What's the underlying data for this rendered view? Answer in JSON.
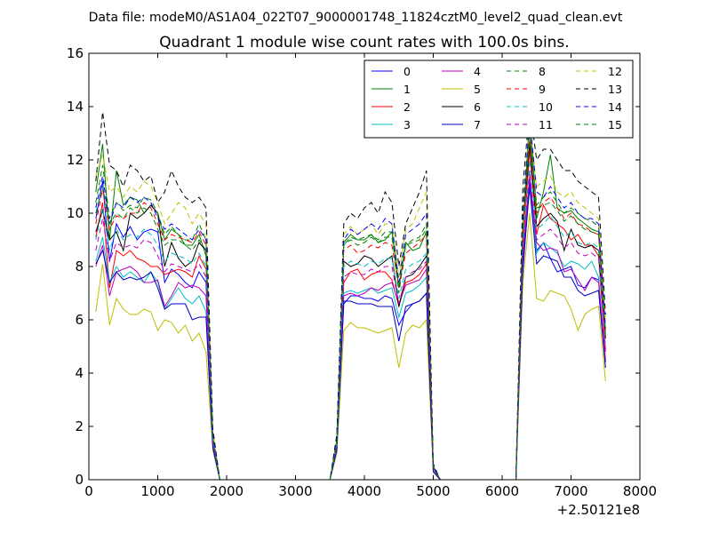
{
  "suptitle": "Data file: modeM0/AS1A04_022T07_9000001748_11824cztM0_level2_quad_clean.evt",
  "chart_data": {
    "type": "line",
    "title": "Quadrant 1 module wise count rates with 100.0s bins.",
    "xlabel": "",
    "ylabel": "",
    "x_offset_label": "+2.50121e8",
    "xlim": [
      0,
      8000
    ],
    "ylim": [
      0,
      16
    ],
    "x_ticks": [
      0,
      1000,
      2000,
      3000,
      4000,
      5000,
      6000,
      7000,
      8000
    ],
    "y_ticks": [
      0,
      2,
      4,
      6,
      8,
      10,
      12,
      14,
      16
    ],
    "grid": false,
    "legend_position": "top-right",
    "legend_columns": 4,
    "x": [
      100,
      200,
      300,
      400,
      500,
      600,
      700,
      800,
      900,
      1000,
      1100,
      1200,
      1300,
      1400,
      1500,
      1600,
      1700,
      1800,
      1900,
      2000,
      2500,
      3000,
      3500,
      3600,
      3700,
      3800,
      3900,
      4000,
      4100,
      4200,
      4300,
      4400,
      4500,
      4600,
      4700,
      4800,
      4900,
      5000,
      5100,
      5200,
      5500,
      6000,
      6200,
      6300,
      6400,
      6500,
      6600,
      6700,
      6800,
      6900,
      7000,
      7100,
      7200,
      7300,
      7400,
      7500
    ],
    "series": [
      {
        "name": "0",
        "color": "#0000ff",
        "dash": "solid",
        "values": [
          9.8,
          11.2,
          8.2,
          9.6,
          9.1,
          9.5,
          9.0,
          9.3,
          9.4,
          9.3,
          7.4,
          7.9,
          7.7,
          7.4,
          7.2,
          7.8,
          7.4,
          1.4,
          0,
          0,
          0,
          0,
          0,
          1.2,
          6.6,
          6.9,
          6.9,
          6.8,
          6.8,
          6.7,
          6.9,
          6.8,
          5.8,
          6.3,
          6.6,
          6.7,
          7.0,
          0.4,
          0,
          0,
          0,
          0,
          0,
          7.8,
          11.2,
          8.6,
          8.9,
          8.3,
          7.8,
          7.9,
          8.0,
          7.3,
          7.2,
          7.6,
          7.5,
          4.4
        ]
      },
      {
        "name": "1",
        "color": "#008000",
        "dash": "solid",
        "values": [
          10.8,
          12.6,
          9.0,
          11.6,
          10.3,
          10.6,
          10.5,
          10.0,
          10.3,
          10.0,
          9.0,
          9.4,
          9.2,
          8.8,
          8.8,
          9.2,
          8.4,
          1.6,
          0,
          0,
          0,
          0,
          0,
          1.4,
          8.9,
          9.2,
          9.0,
          9.0,
          9.2,
          8.9,
          9.0,
          9.3,
          7.2,
          8.9,
          8.6,
          8.7,
          9.3,
          0.5,
          0,
          0,
          0,
          0,
          0,
          9.2,
          13.8,
          9.8,
          10.8,
          12.2,
          10.2,
          10.0,
          10.1,
          9.8,
          9.6,
          9.4,
          9.3,
          5.5
        ]
      },
      {
        "name": "2",
        "color": "#ff0000",
        "dash": "solid",
        "values": [
          9.1,
          10.4,
          7.2,
          8.6,
          8.4,
          8.6,
          8.3,
          8.2,
          8.0,
          8.0,
          7.7,
          7.8,
          7.9,
          7.8,
          7.6,
          8.4,
          7.9,
          1.5,
          0,
          0,
          0,
          0,
          0,
          1.3,
          7.4,
          7.8,
          7.9,
          7.5,
          7.7,
          7.8,
          7.8,
          7.5,
          6.5,
          7.4,
          7.5,
          7.7,
          8.1,
          0.4,
          0,
          0,
          0,
          0,
          0,
          8.6,
          12.4,
          9.2,
          10.3,
          9.8,
          9.6,
          9.4,
          9.0,
          9.2,
          8.8,
          8.8,
          8.4,
          4.9
        ]
      },
      {
        "name": "3",
        "color": "#00bfbf",
        "dash": "solid",
        "values": [
          8.2,
          9.1,
          7.4,
          8.0,
          7.6,
          7.8,
          7.6,
          7.4,
          7.8,
          7.4,
          6.4,
          6.8,
          7.2,
          6.8,
          6.6,
          6.9,
          6.3,
          1.3,
          0,
          0,
          0,
          0,
          0,
          1.2,
          7.0,
          7.1,
          7.0,
          7.1,
          7.2,
          7.0,
          7.1,
          7.2,
          6.1,
          7.0,
          7.1,
          7.3,
          7.6,
          0.4,
          0,
          0,
          0,
          0,
          0,
          8.2,
          11.0,
          8.5,
          8.9,
          8.7,
          8.5,
          8.0,
          8.2,
          8.1,
          7.9,
          8.2,
          7.6,
          4.2
        ]
      },
      {
        "name": "4",
        "color": "#bf00bf",
        "dash": "solid",
        "values": [
          8.0,
          8.8,
          6.9,
          7.8,
          7.9,
          8.0,
          7.8,
          7.4,
          7.4,
          7.5,
          6.5,
          6.9,
          7.4,
          7.2,
          7.3,
          7.2,
          6.9,
          1.3,
          0,
          0,
          0,
          0,
          0,
          1.2,
          6.9,
          7.0,
          6.9,
          7.0,
          7.2,
          7.1,
          7.3,
          7.4,
          6.6,
          7.3,
          7.4,
          7.5,
          7.9,
          0.4,
          0,
          0,
          0,
          0,
          0,
          8.4,
          11.4,
          8.9,
          8.6,
          8.7,
          8.6,
          7.8,
          7.9,
          7.5,
          7.1,
          7.6,
          7.4,
          4.5
        ]
      },
      {
        "name": "5",
        "color": "#bfbf00",
        "dash": "solid",
        "values": [
          6.3,
          8.1,
          5.8,
          6.8,
          6.4,
          6.2,
          6.2,
          6.4,
          6.3,
          5.6,
          6.0,
          5.9,
          5.5,
          5.8,
          5.2,
          5.5,
          4.8,
          1.1,
          0,
          0,
          0,
          0,
          0,
          1.0,
          5.6,
          5.9,
          5.7,
          5.7,
          5.6,
          5.5,
          5.6,
          5.7,
          4.2,
          5.5,
          5.8,
          5.7,
          6.0,
          0.3,
          0,
          0,
          0,
          0,
          0,
          7.4,
          10.0,
          6.8,
          6.7,
          7.1,
          7.0,
          6.9,
          6.4,
          5.6,
          6.2,
          6.4,
          6.5,
          3.7
        ]
      },
      {
        "name": "6",
        "color": "#000000",
        "dash": "solid",
        "values": [
          9.3,
          10.1,
          9.0,
          9.3,
          8.6,
          10.0,
          9.8,
          10.0,
          10.3,
          10.0,
          8.0,
          8.9,
          8.3,
          8.0,
          8.2,
          8.9,
          8.6,
          1.6,
          0,
          0,
          0,
          0,
          0,
          1.5,
          8.2,
          8.0,
          8.1,
          8.4,
          8.3,
          8.0,
          8.2,
          8.4,
          6.5,
          7.6,
          7.7,
          8.0,
          8.4,
          0.5,
          0,
          0,
          0,
          0,
          0,
          9.4,
          12.6,
          9.5,
          9.8,
          10.0,
          9.7,
          8.6,
          9.4,
          8.8,
          8.7,
          8.8,
          8.6,
          5.3
        ]
      },
      {
        "name": "7",
        "color": "#0000bf",
        "dash": "solid",
        "values": [
          8.1,
          8.6,
          7.4,
          7.8,
          7.5,
          7.6,
          7.5,
          7.6,
          7.8,
          7.2,
          6.4,
          6.6,
          6.6,
          6.6,
          6.0,
          6.1,
          6.1,
          1.2,
          0,
          0,
          0,
          0,
          0,
          1.1,
          6.7,
          6.7,
          6.6,
          6.6,
          6.6,
          6.5,
          6.5,
          6.5,
          5.2,
          6.5,
          6.6,
          6.7,
          7.0,
          0.3,
          0,
          0,
          0,
          0,
          0,
          8.0,
          11.0,
          8.1,
          8.4,
          8.3,
          8.2,
          7.6,
          7.6,
          7.1,
          6.9,
          7.0,
          7.1,
          4.2
        ]
      },
      {
        "name": "8",
        "color": "#008000",
        "dash": "dashed",
        "values": [
          10.4,
          11.8,
          9.8,
          10.4,
          10.1,
          10.3,
          10.2,
          10.6,
          10.5,
          10.0,
          9.2,
          9.5,
          9.2,
          9.0,
          9.0,
          9.6,
          9.0,
          1.7,
          0,
          0,
          0,
          0,
          0,
          1.5,
          8.8,
          9.1,
          9.0,
          9.1,
          9.2,
          9.0,
          9.3,
          9.3,
          7.0,
          8.8,
          8.9,
          9.0,
          9.4,
          0.5,
          0,
          0,
          0,
          0,
          0,
          9.6,
          13.2,
          10.3,
          10.6,
          10.8,
          10.4,
          10.0,
          10.2,
          10.0,
          9.8,
          9.7,
          9.5,
          5.6
        ]
      },
      {
        "name": "9",
        "color": "#ff0000",
        "dash": "dashed",
        "values": [
          9.6,
          10.9,
          9.4,
          9.9,
          9.8,
          10.0,
          10.0,
          10.4,
          10.2,
          9.6,
          9.0,
          9.2,
          9.1,
          9.0,
          8.9,
          9.3,
          8.8,
          1.6,
          0,
          0,
          0,
          0,
          0,
          1.4,
          8.6,
          8.8,
          8.5,
          8.6,
          8.8,
          8.7,
          8.9,
          8.8,
          7.2,
          8.5,
          8.7,
          8.9,
          9.2,
          0.5,
          0,
          0,
          0,
          0,
          0,
          9.4,
          12.8,
          10.0,
          10.4,
          10.6,
          10.2,
          9.8,
          10.0,
          9.6,
          9.5,
          9.3,
          9.2,
          5.4
        ]
      },
      {
        "name": "10",
        "color": "#00bfbf",
        "dash": "dashed",
        "values": [
          9.0,
          10.2,
          8.6,
          9.4,
          9.0,
          9.2,
          9.1,
          9.4,
          9.2,
          8.8,
          8.2,
          8.5,
          8.4,
          8.3,
          8.1,
          8.5,
          8.0,
          1.5,
          0,
          0,
          0,
          0,
          0,
          1.3,
          8.0,
          8.2,
          8.1,
          8.0,
          8.2,
          8.1,
          8.3,
          8.3,
          6.8,
          7.9,
          8.1,
          8.2,
          8.5,
          0.4,
          0,
          0,
          0,
          0,
          0,
          8.9,
          12.0,
          9.4,
          9.6,
          9.9,
          9.5,
          9.1,
          9.3,
          8.9,
          8.8,
          8.9,
          8.7,
          5.0
        ]
      },
      {
        "name": "11",
        "color": "#bf00bf",
        "dash": "dashed",
        "values": [
          8.6,
          9.8,
          8.2,
          8.9,
          8.7,
          8.8,
          8.7,
          9.0,
          8.9,
          8.4,
          7.8,
          8.1,
          8.0,
          7.9,
          7.8,
          8.1,
          7.6,
          1.4,
          0,
          0,
          0,
          0,
          0,
          1.3,
          7.6,
          7.8,
          7.7,
          7.7,
          7.9,
          7.8,
          8.0,
          8.0,
          6.6,
          7.6,
          7.8,
          7.9,
          8.2,
          0.4,
          0,
          0,
          0,
          0,
          0,
          8.6,
          11.6,
          9.0,
          9.2,
          9.4,
          9.1,
          8.7,
          8.9,
          8.5,
          8.4,
          8.5,
          8.3,
          4.8
        ]
      },
      {
        "name": "12",
        "color": "#bfbf00",
        "dash": "dashed",
        "values": [
          11.4,
          12.2,
          10.8,
          11.0,
          10.6,
          11.0,
          10.8,
          11.2,
          11.0,
          10.4,
          9.6,
          10.0,
          10.4,
          10.2,
          9.6,
          10.0,
          9.6,
          1.8,
          0,
          0,
          0,
          0,
          0,
          1.6,
          9.2,
          9.5,
          9.2,
          9.4,
          9.6,
          9.2,
          9.6,
          9.6,
          7.6,
          9.4,
          9.6,
          10.2,
          10.8,
          0.5,
          0,
          0,
          0,
          0,
          0,
          10.4,
          13.4,
          11.0,
          11.2,
          11.4,
          10.8,
          10.6,
          10.8,
          10.4,
          10.2,
          10.0,
          9.8,
          5.9
        ]
      },
      {
        "name": "13",
        "color": "#000000",
        "dash": "dashed",
        "values": [
          11.2,
          13.8,
          11.8,
          11.6,
          11.0,
          11.8,
          11.6,
          11.2,
          11.4,
          10.4,
          10.8,
          11.6,
          11.0,
          10.6,
          10.4,
          10.6,
          10.2,
          1.9,
          0,
          0,
          0,
          0,
          0,
          1.7,
          9.6,
          10.0,
          9.8,
          10.2,
          10.4,
          10.0,
          10.8,
          10.4,
          8.0,
          9.6,
          10.2,
          10.8,
          11.6,
          0.6,
          0,
          0,
          0,
          0,
          0,
          11.0,
          14.0,
          12.0,
          12.4,
          12.4,
          12.0,
          11.6,
          11.6,
          11.2,
          11.0,
          10.8,
          10.6,
          6.2
        ]
      },
      {
        "name": "14",
        "color": "#0000ff",
        "dash": "dashed",
        "values": [
          10.2,
          11.4,
          9.6,
          10.4,
          10.2,
          10.6,
          10.4,
          10.6,
          10.4,
          9.8,
          9.4,
          9.6,
          9.4,
          9.2,
          9.0,
          9.4,
          9.0,
          1.7,
          0,
          0,
          0,
          0,
          0,
          1.5,
          9.0,
          9.4,
          9.2,
          9.4,
          9.6,
          9.4,
          9.8,
          9.6,
          7.4,
          9.2,
          9.4,
          9.6,
          10.0,
          0.5,
          0,
          0,
          0,
          0,
          0,
          10.0,
          13.6,
          10.8,
          10.6,
          11.0,
          10.6,
          10.2,
          10.4,
          10.0,
          9.8,
          9.8,
          9.6,
          5.7
        ]
      },
      {
        "name": "15",
        "color": "#008000",
        "dash": "dashed",
        "values": [
          10.0,
          11.0,
          9.6,
          10.0,
          9.8,
          10.2,
          10.0,
          10.2,
          10.0,
          9.4,
          8.8,
          9.0,
          9.0,
          8.8,
          8.6,
          9.0,
          8.6,
          1.6,
          0,
          0,
          0,
          0,
          0,
          1.4,
          8.8,
          9.0,
          8.8,
          8.9,
          9.1,
          8.9,
          9.1,
          9.1,
          7.2,
          8.8,
          9.0,
          9.1,
          9.6,
          0.5,
          0,
          0,
          0,
          0,
          0,
          9.6,
          13.0,
          10.2,
          10.3,
          10.4,
          10.1,
          9.7,
          9.9,
          9.6,
          9.4,
          9.3,
          9.2,
          5.4
        ]
      }
    ]
  }
}
